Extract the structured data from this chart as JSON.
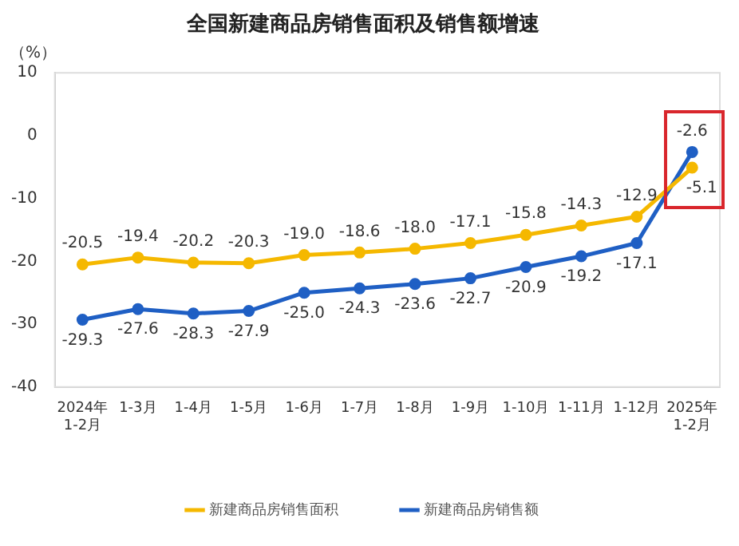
{
  "chart_data": {
    "type": "line",
    "title": "全国新建商品房销售面积及销售额增速",
    "ylabel": "（%）",
    "categories": [
      "2024年\n1-2月",
      "1-3月",
      "1-4月",
      "1-5月",
      "1-6月",
      "1-7月",
      "1-8月",
      "1-9月",
      "1-10月",
      "1-11月",
      "1-12月",
      "2025年\n1-2月"
    ],
    "series": [
      {
        "name": "新建商品房销售面积",
        "color": "#f5b800",
        "values": [
          -20.5,
          -19.4,
          -20.2,
          -20.3,
          -19.0,
          -18.6,
          -18.0,
          -17.1,
          -15.8,
          -14.3,
          -12.9,
          -5.1
        ],
        "value_labels": [
          "-20.5",
          "-19.4",
          "-20.2",
          "-20.3",
          "-19.0",
          "-18.6",
          "-18.0",
          "-17.1",
          "-15.8",
          "-14.3",
          "-12.9",
          "-5.1"
        ]
      },
      {
        "name": "新建商品房销售额",
        "color": "#1f5fc4",
        "values": [
          -29.3,
          -27.6,
          -28.3,
          -27.9,
          -25.0,
          -24.3,
          -23.6,
          -22.7,
          -20.9,
          -19.2,
          -17.1,
          -2.6
        ],
        "value_labels": [
          "-29.3",
          "-27.6",
          "-28.3",
          "-27.9",
          "-25.0",
          "-24.3",
          "-23.6",
          "-22.7",
          "-20.9",
          "-19.2",
          "-17.1",
          "-2.6"
        ]
      }
    ],
    "ylim": [
      -40,
      10
    ],
    "yticks": [
      -40,
      -30,
      -20,
      -10,
      0,
      10
    ],
    "grid": false,
    "legend": "bottom",
    "marker": "circle",
    "line_style": "solid"
  }
}
